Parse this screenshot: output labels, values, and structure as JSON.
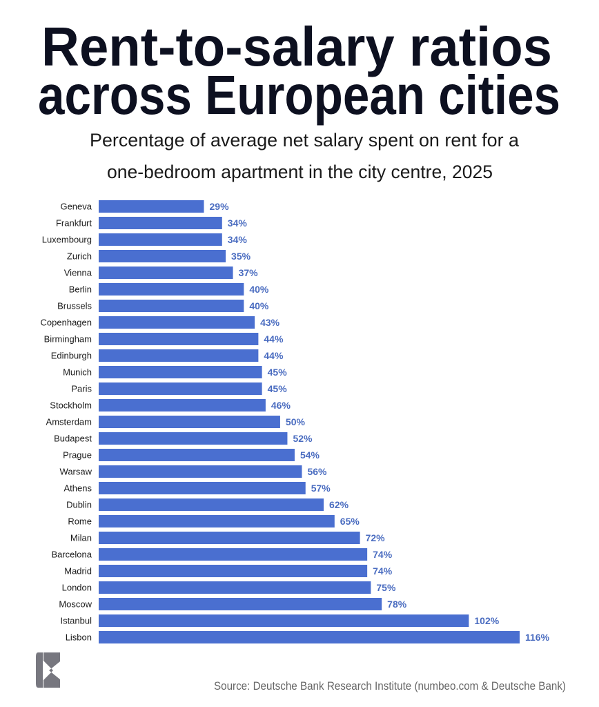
{
  "chart_data": {
    "type": "bar",
    "orientation": "horizontal",
    "title": "Rent-to-salary ratios across European cities",
    "title_lines": [
      "Rent-to-salary ratios",
      "across European cities"
    ],
    "subtitle_lines": [
      "Percentage of average net salary spent on rent for a",
      "one-bedroom apartment in the city centre, 2025"
    ],
    "categories": [
      "Geneva",
      "Frankfurt",
      "Luxembourg",
      "Zurich",
      "Vienna",
      "Berlin",
      "Brussels",
      "Copenhagen",
      "Birmingham",
      "Edinburgh",
      "Munich",
      "Paris",
      "Stockholm",
      "Amsterdam",
      "Budapest",
      "Prague",
      "Warsaw",
      "Athens",
      "Dublin",
      "Rome",
      "Milan",
      "Barcelona",
      "Madrid",
      "London",
      "Moscow",
      "Istanbul",
      "Lisbon"
    ],
    "values": [
      29,
      34,
      34,
      35,
      37,
      40,
      40,
      43,
      44,
      44,
      45,
      45,
      46,
      50,
      52,
      54,
      56,
      57,
      62,
      65,
      72,
      74,
      74,
      75,
      78,
      102,
      116
    ],
    "value_suffix": "%",
    "xlim": [
      0,
      116
    ],
    "grid": false,
    "bar_color": "#4a6fd0",
    "label_color": "#4a6cc0",
    "source": "Source: Deutsche Bank Research Institute (numbeo.com & Deutsche Bank)"
  },
  "logo": {
    "name": "E-logo",
    "color": "#77777f"
  }
}
